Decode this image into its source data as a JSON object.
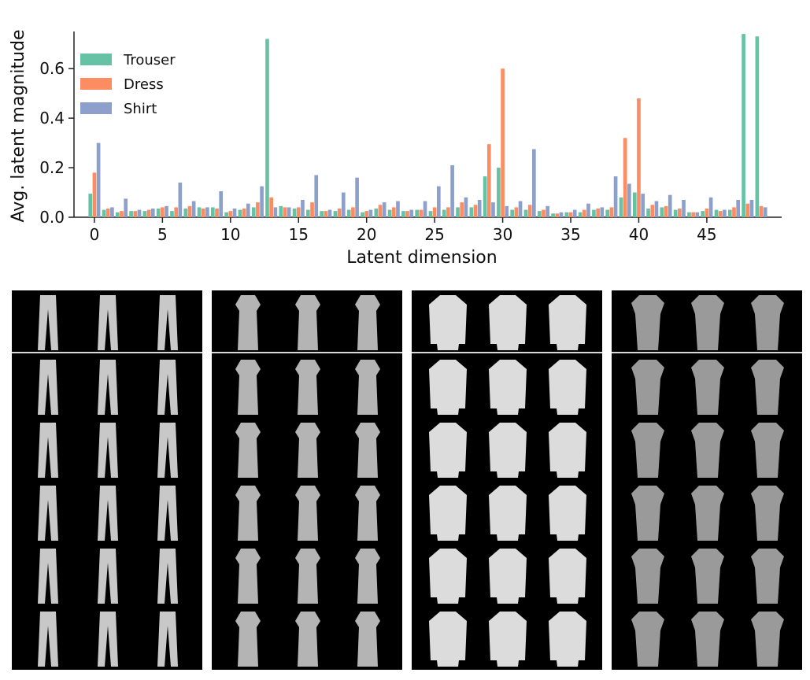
{
  "chart_data": {
    "type": "bar",
    "xlabel": "Latent dimension",
    "ylabel": "Avg. latent magnitude",
    "ylim": [
      0,
      0.75
    ],
    "xlim": [
      -1.5,
      50.5
    ],
    "xticks": [
      0,
      5,
      10,
      15,
      20,
      25,
      30,
      35,
      40,
      45
    ],
    "xtick_labels": [
      "0",
      "5",
      "10",
      "15",
      "20",
      "25",
      "30",
      "35",
      "40",
      "45"
    ],
    "yticks": [
      0.0,
      0.2,
      0.4,
      0.6
    ],
    "ytick_labels": [
      "0.0",
      "0.2",
      "0.4",
      "0.6"
    ],
    "legend_position": "top-left",
    "categories": [
      0,
      1,
      2,
      3,
      4,
      5,
      6,
      7,
      8,
      9,
      10,
      11,
      12,
      13,
      14,
      15,
      16,
      17,
      18,
      19,
      20,
      21,
      22,
      23,
      24,
      25,
      26,
      27,
      28,
      29,
      30,
      31,
      32,
      33,
      34,
      35,
      36,
      37,
      38,
      39,
      40,
      41,
      42,
      43,
      44,
      45,
      46,
      47,
      48,
      49
    ],
    "series": [
      {
        "name": "Trouser",
        "color": "#66c2a5",
        "values": [
          0.095,
          0.03,
          0.02,
          0.025,
          0.025,
          0.035,
          0.025,
          0.035,
          0.04,
          0.04,
          0.02,
          0.03,
          0.04,
          0.72,
          0.045,
          0.035,
          0.03,
          0.025,
          0.025,
          0.03,
          0.02,
          0.035,
          0.03,
          0.025,
          0.03,
          0.025,
          0.03,
          0.04,
          0.04,
          0.165,
          0.2,
          0.03,
          0.03,
          0.025,
          0.015,
          0.02,
          0.02,
          0.03,
          0.03,
          0.08,
          0.1,
          0.035,
          0.04,
          0.03,
          0.02,
          0.025,
          0.03,
          0.03,
          0.74,
          0.73
        ]
      },
      {
        "name": "Dress",
        "color": "#fc8d62",
        "values": [
          0.18,
          0.035,
          0.025,
          0.025,
          0.03,
          0.04,
          0.04,
          0.045,
          0.035,
          0.035,
          0.025,
          0.035,
          0.06,
          0.08,
          0.04,
          0.04,
          0.06,
          0.025,
          0.035,
          0.04,
          0.025,
          0.05,
          0.04,
          0.025,
          0.03,
          0.04,
          0.04,
          0.06,
          0.05,
          0.295,
          0.6,
          0.04,
          0.05,
          0.03,
          0.015,
          0.02,
          0.03,
          0.035,
          0.04,
          0.32,
          0.48,
          0.05,
          0.045,
          0.035,
          0.02,
          0.035,
          0.025,
          0.04,
          0.055,
          0.045
        ]
      },
      {
        "name": "Shirt",
        "color": "#8da0cb",
        "values": [
          0.3,
          0.04,
          0.075,
          0.03,
          0.035,
          0.045,
          0.14,
          0.065,
          0.04,
          0.105,
          0.035,
          0.055,
          0.125,
          0.04,
          0.04,
          0.07,
          0.17,
          0.03,
          0.1,
          0.16,
          0.03,
          0.06,
          0.065,
          0.03,
          0.065,
          0.125,
          0.21,
          0.08,
          0.07,
          0.06,
          0.045,
          0.065,
          0.275,
          0.045,
          0.02,
          0.03,
          0.055,
          0.04,
          0.165,
          0.135,
          0.095,
          0.065,
          0.09,
          0.07,
          0.02,
          0.08,
          0.03,
          0.07,
          0.07,
          0.04
        ]
      }
    ]
  },
  "panels": [
    {
      "name": "trouser",
      "tone": "#c8c8c8"
    },
    {
      "name": "dress",
      "tone": "#b4b4b4"
    },
    {
      "name": "shirt-light",
      "tone": "#dcdcdc"
    },
    {
      "name": "shirt-dark",
      "tone": "#9a9a9a"
    }
  ]
}
